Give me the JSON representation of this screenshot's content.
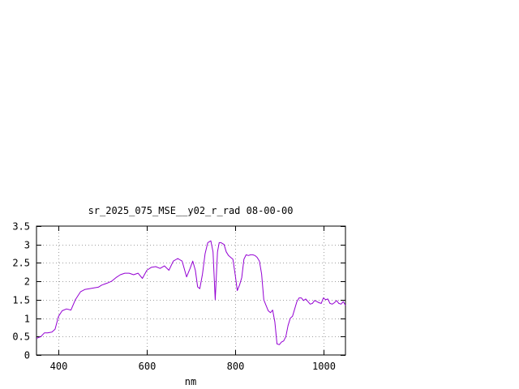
{
  "chart_data": {
    "type": "line",
    "title": "sr_2025_075_MSE__y02_r_rad 08-00-00",
    "xlabel": "nm",
    "ylabel": "",
    "xlim": [
      350,
      1050
    ],
    "ylim": [
      0,
      3.5
    ],
    "xticks": [
      400,
      600,
      800,
      1000
    ],
    "yticks": [
      0,
      0.5,
      1,
      1.5,
      2,
      2.5,
      3,
      3.5
    ],
    "xtick_labels": [
      "400",
      "600",
      "800",
      "1000"
    ],
    "ytick_labels": [
      "0",
      "0.5",
      "1",
      "1.5",
      "2",
      "2.5",
      "3",
      "3.5"
    ],
    "grid": true,
    "line_color": "#9400d3",
    "series": [
      {
        "x": [
          350,
          360,
          368,
          375,
          385,
          392,
          400,
          408,
          418,
          428,
          438,
          450,
          460,
          470,
          480,
          490,
          498,
          510,
          520,
          530,
          540,
          550,
          560,
          570,
          580,
          590,
          600,
          610,
          620,
          630,
          640,
          650,
          660,
          670,
          680,
          690,
          698,
          704,
          710,
          715,
          720,
          726,
          732,
          738,
          745,
          750,
          755,
          760,
          764,
          768,
          775,
          780,
          785,
          790,
          795,
          800,
          805,
          810,
          815,
          820,
          825,
          830,
          835,
          840,
          845,
          850,
          855,
          860,
          865,
          870,
          875,
          880,
          885,
          890,
          895,
          900,
          905,
          910,
          915,
          920,
          925,
          930,
          935,
          940,
          945,
          950,
          955,
          960,
          965,
          970,
          975,
          980,
          985,
          990,
          995,
          1000,
          1005,
          1010,
          1015,
          1020,
          1025,
          1030,
          1035,
          1040,
          1045,
          1050
        ],
        "y": [
          0.45,
          0.5,
          0.6,
          0.6,
          0.62,
          0.7,
          1.05,
          1.2,
          1.25,
          1.22,
          1.5,
          1.72,
          1.78,
          1.8,
          1.82,
          1.84,
          1.9,
          1.95,
          2.0,
          2.1,
          2.18,
          2.22,
          2.22,
          2.18,
          2.22,
          2.08,
          2.3,
          2.38,
          2.4,
          2.35,
          2.42,
          2.3,
          2.55,
          2.62,
          2.55,
          2.12,
          2.35,
          2.55,
          2.3,
          1.85,
          1.8,
          2.2,
          2.75,
          3.05,
          3.1,
          2.8,
          1.5,
          2.8,
          3.05,
          3.05,
          3.0,
          2.8,
          2.7,
          2.65,
          2.6,
          2.2,
          1.75,
          1.9,
          2.1,
          2.6,
          2.72,
          2.7,
          2.72,
          2.72,
          2.7,
          2.65,
          2.55,
          2.2,
          1.5,
          1.35,
          1.2,
          1.15,
          1.22,
          0.9,
          0.3,
          0.28,
          0.35,
          0.38,
          0.5,
          0.8,
          1.0,
          1.05,
          1.25,
          1.45,
          1.55,
          1.55,
          1.48,
          1.52,
          1.45,
          1.38,
          1.4,
          1.48,
          1.45,
          1.42,
          1.4,
          1.55,
          1.5,
          1.52,
          1.4,
          1.38,
          1.42,
          1.48,
          1.4,
          1.38,
          1.45,
          1.35
        ]
      }
    ]
  }
}
